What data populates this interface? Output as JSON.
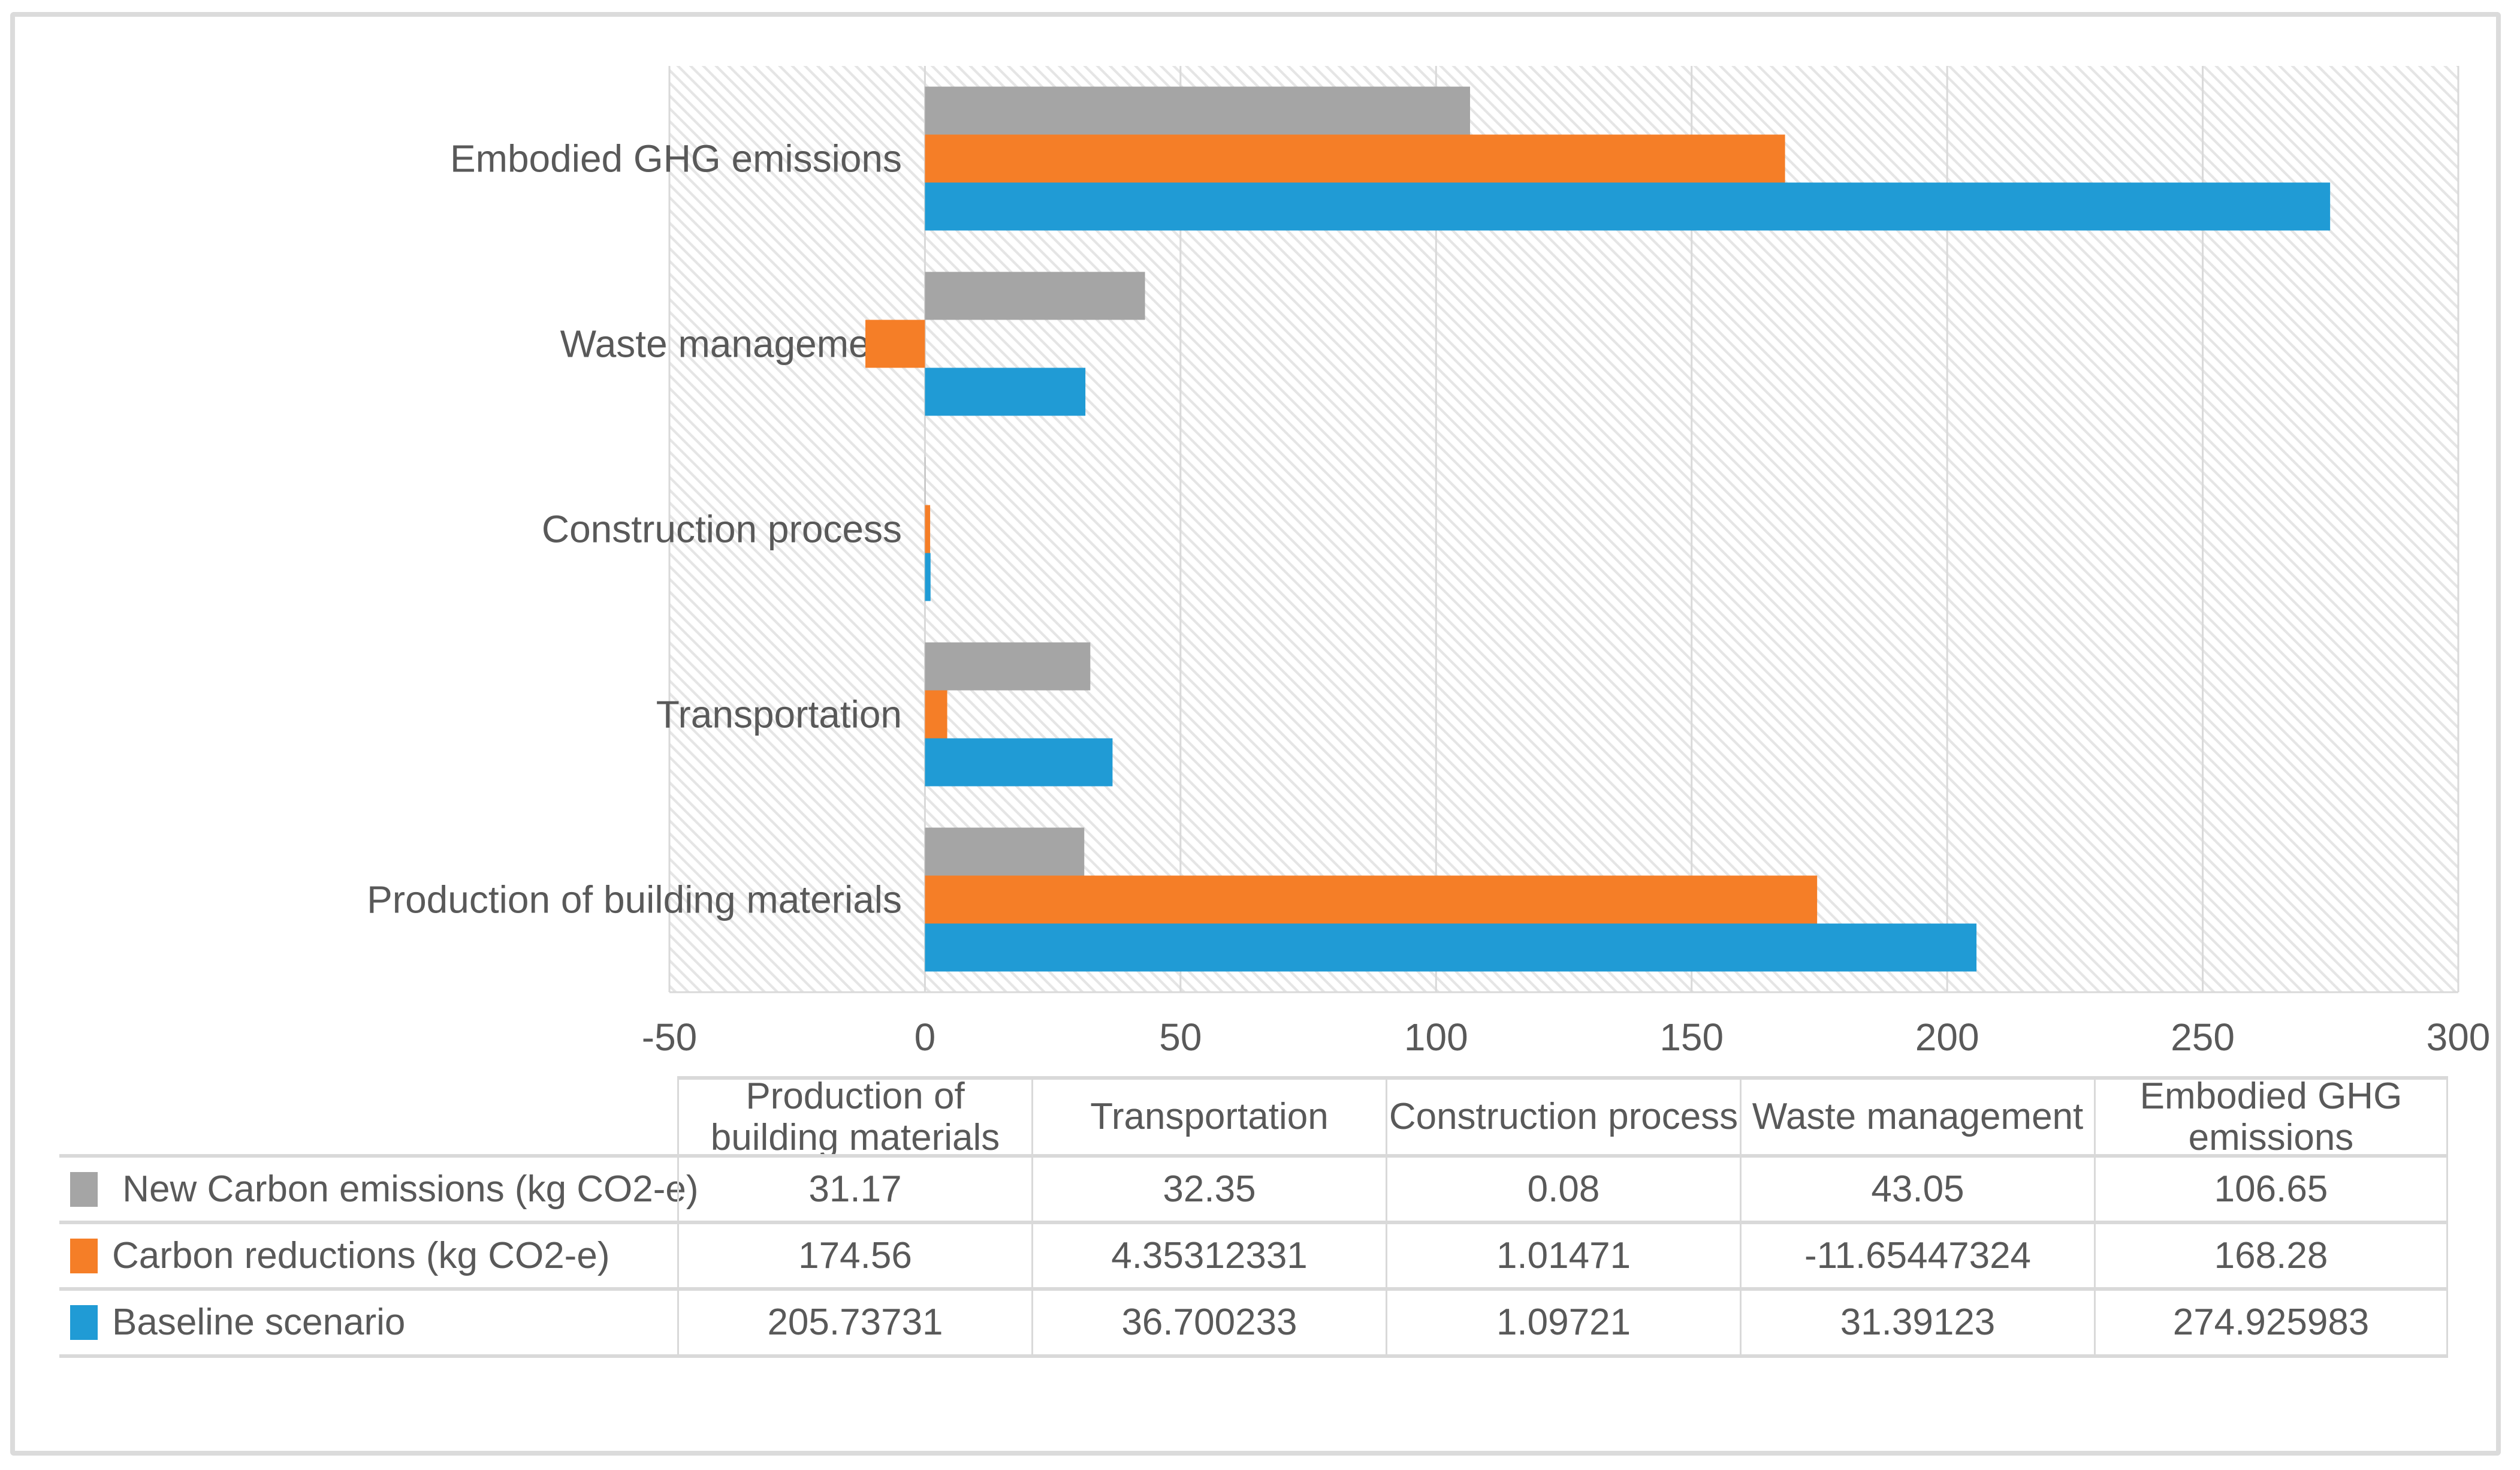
{
  "chart_data": {
    "type": "bar",
    "orientation": "horizontal",
    "title": "",
    "xlabel": "",
    "ylabel": "",
    "categories": [
      "Production of building materials",
      "Transportation",
      "Construction process",
      "Waste management",
      "Embodied GHG emissions"
    ],
    "series": [
      {
        "name": "New Carbon emissions (kg CO2-e)",
        "color": "#A5A5A5",
        "values": [
          31.17,
          32.35,
          0.08,
          43.05,
          106.65
        ]
      },
      {
        "name": "Carbon reductions (kg CO2-e)",
        "color": "#F57E27",
        "values": [
          174.56,
          4.35312331,
          1.01471,
          -11.65447324,
          168.28
        ]
      },
      {
        "name": "Baseline scenario",
        "color": "#209BD5",
        "values": [
          205.73731,
          36.700233,
          1.09721,
          31.39123,
          274.925983
        ]
      }
    ],
    "xlim": [
      -50,
      300
    ],
    "xticks": [
      -50,
      0,
      50,
      100,
      150,
      200,
      250,
      300
    ],
    "grid": true,
    "plot_background": "diagonal-hatch",
    "legend_position": "data-table",
    "bar_order_top_to_bottom": [
      "New Carbon emissions (kg CO2-e)",
      "Carbon reductions (kg CO2-e)",
      "Baseline scenario"
    ]
  },
  "table": {
    "headers": [
      "Production of\nbuilding materials",
      "Transportation",
      "Construction process",
      "Waste management",
      "Embodied GHG\nemissions"
    ],
    "rows": [
      {
        "legend": " New Carbon emissions (kg CO2-e)",
        "swatch_color": "#A5A5A5",
        "values": [
          "31.17",
          "32.35",
          "0.08",
          "43.05",
          "106.65"
        ]
      },
      {
        "legend": "Carbon reductions (kg CO2-e)",
        "swatch_color": "#F57E27",
        "values": [
          "174.56",
          "4.35312331",
          "1.01471",
          "-11.65447324",
          "168.28"
        ]
      },
      {
        "legend": "Baseline scenario",
        "swatch_color": "#209BD5",
        "values": [
          "205.73731",
          "36.700233",
          "1.09721",
          "31.39123",
          "274.925983"
        ]
      }
    ]
  },
  "colors": {
    "text": "#595959",
    "gridline": "#D9D9D9",
    "table_border": "#D9D9D9",
    "hatch_line": "#E5E5E5",
    "frame_border": "#DBDBDB",
    "background": "#FFFFFF"
  }
}
